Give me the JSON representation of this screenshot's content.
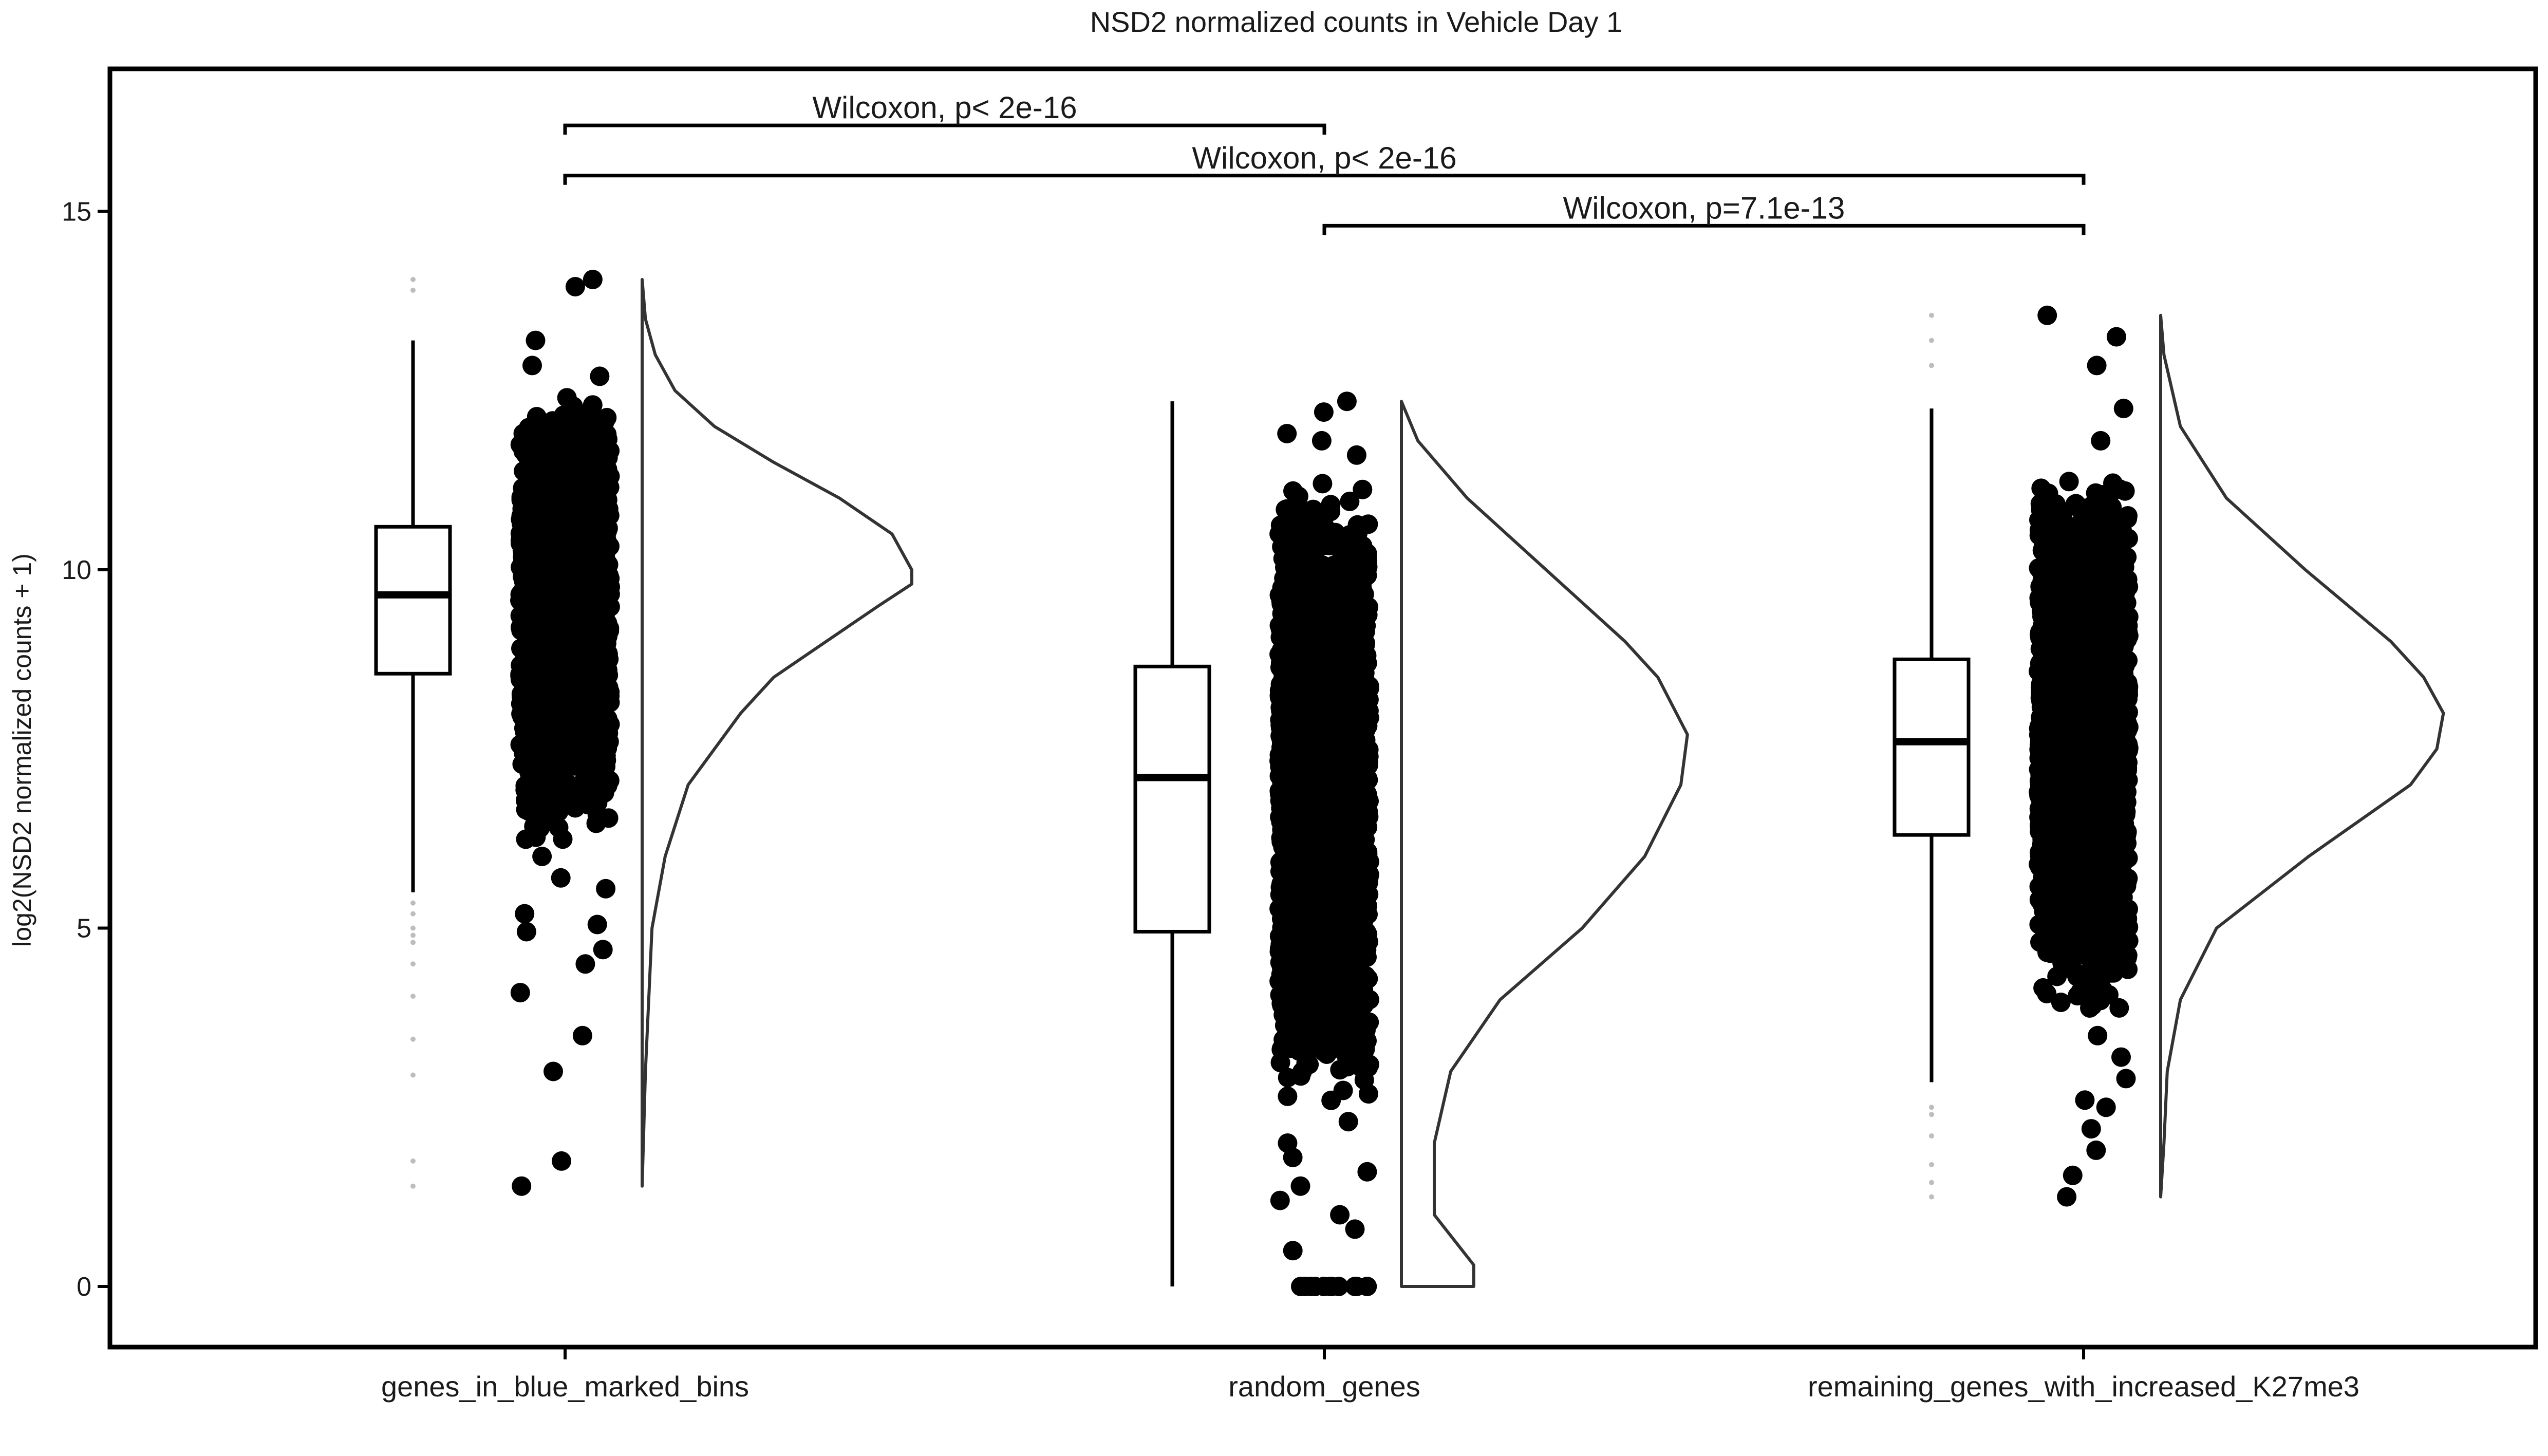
{
  "chart_data": {
    "type": "raincloud",
    "title": "NSD2 normalized counts in Vehicle Day 1",
    "xlabel": "",
    "ylabel": "log2(NSD2 normalized counts + 1)",
    "ylim": [
      -0.85,
      19.6
    ],
    "yticks": [
      0,
      5,
      10,
      15
    ],
    "categories": [
      "genes_in_blue_marked_bins",
      "random_genes",
      "remaining_genes_with_increased_K27me3"
    ],
    "grid": false,
    "boxes": [
      {
        "category": "genes_in_blue_marked_bins",
        "whisker_low": 5.5,
        "q1": 8.55,
        "median": 9.65,
        "q3": 10.6,
        "whisker_high": 13.2,
        "outliers": [
          5.35,
          5.2,
          5.0,
          4.9,
          4.8,
          4.5,
          4.05,
          3.45,
          2.95,
          1.75,
          1.4,
          13.9,
          14.05
        ]
      },
      {
        "category": "random_genes",
        "whisker_low": 0.0,
        "q1": 4.95,
        "median": 7.1,
        "q3": 8.65,
        "whisker_high": 12.35,
        "outliers": []
      },
      {
        "category": "remaining_genes_with_increased_K27me3",
        "whisker_low": 2.85,
        "q1": 6.3,
        "median": 7.6,
        "q3": 8.75,
        "whisker_high": 12.25,
        "outliers": [
          2.5,
          2.4,
          2.1,
          1.7,
          1.45,
          1.25,
          12.85,
          13.2,
          13.55
        ]
      }
    ],
    "jitter": [
      {
        "category": "genes_in_blue_marked_bins",
        "bulk_range": [
          6.2,
          12.5
        ],
        "n_bulk": 1400,
        "extra_points": [
          14.05,
          13.95,
          13.2,
          12.85,
          12.7,
          12.4,
          6.0,
          5.7,
          5.55,
          5.2,
          5.05,
          4.95,
          4.7,
          4.5,
          4.1,
          3.5,
          3.0,
          1.75,
          1.4
        ]
      },
      {
        "category": "random_genes",
        "bulk_range": [
          2.5,
          11.3
        ],
        "n_bulk": 2200,
        "extra_points": [
          12.35,
          12.2,
          11.9,
          11.8,
          11.6,
          2.3,
          2.0,
          1.8,
          1.6,
          1.4,
          1.2,
          1.0,
          0.8,
          0.5,
          0.0,
          0.0,
          0.0,
          0.0,
          0.0,
          0.0,
          0.0,
          0.0,
          0.0,
          0.0,
          0.0
        ]
      },
      {
        "category": "remaining_genes_with_increased_K27me3",
        "bulk_range": [
          3.8,
          11.4
        ],
        "n_bulk": 2000,
        "extra_points": [
          13.55,
          13.25,
          12.85,
          12.25,
          11.8,
          3.5,
          3.2,
          2.9,
          2.6,
          2.5,
          2.2,
          1.9,
          1.55,
          1.25
        ]
      }
    ],
    "density": [
      {
        "category": "genes_in_blue_marked_bins",
        "y": [
          1.4,
          3.0,
          5.0,
          6.0,
          7.0,
          8.0,
          8.5,
          9.0,
          9.5,
          9.8,
          10.0,
          10.5,
          11.0,
          11.5,
          12.0,
          12.5,
          13.0,
          13.5,
          14.05
        ],
        "d": [
          0.0,
          0.01,
          0.03,
          0.07,
          0.14,
          0.3,
          0.4,
          0.56,
          0.72,
          0.82,
          0.82,
          0.76,
          0.6,
          0.4,
          0.22,
          0.1,
          0.04,
          0.01,
          0.0
        ]
      },
      {
        "category": "random_genes",
        "y": [
          0.0,
          0.3,
          1.0,
          2.0,
          3.0,
          4.0,
          5.0,
          6.0,
          7.0,
          7.7,
          8.5,
          9.0,
          10.0,
          11.0,
          11.8,
          12.35
        ],
        "d": [
          0.22,
          0.22,
          0.1,
          0.1,
          0.15,
          0.3,
          0.55,
          0.74,
          0.85,
          0.87,
          0.78,
          0.68,
          0.44,
          0.2,
          0.05,
          0.0
        ]
      },
      {
        "category": "remaining_genes_with_increased_K27me3",
        "y": [
          1.25,
          2.0,
          3.0,
          4.0,
          5.0,
          6.0,
          7.0,
          7.5,
          8.0,
          8.5,
          9.0,
          10.0,
          11.0,
          12.0,
          13.0,
          13.55
        ],
        "d": [
          0.0,
          0.01,
          0.02,
          0.06,
          0.17,
          0.45,
          0.76,
          0.84,
          0.86,
          0.8,
          0.7,
          0.44,
          0.2,
          0.06,
          0.01,
          0.0
        ]
      }
    ],
    "comparisons": [
      {
        "from": "genes_in_blue_marked_bins",
        "to": "random_genes",
        "label": "Wilcoxon, p< 2e-16",
        "y": 16.2
      },
      {
        "from": "genes_in_blue_marked_bins",
        "to": "remaining_genes_with_increased_K27me3",
        "label": "Wilcoxon, p< 2e-16",
        "y": 15.5
      },
      {
        "from": "random_genes",
        "to": "remaining_genes_with_increased_K27me3",
        "label": "Wilcoxon, p=7.1e-13",
        "y": 14.8
      }
    ],
    "colors": {
      "points": "#000000",
      "box": "#000000",
      "density": "#333333",
      "outlier": "#bdbdbd"
    }
  }
}
